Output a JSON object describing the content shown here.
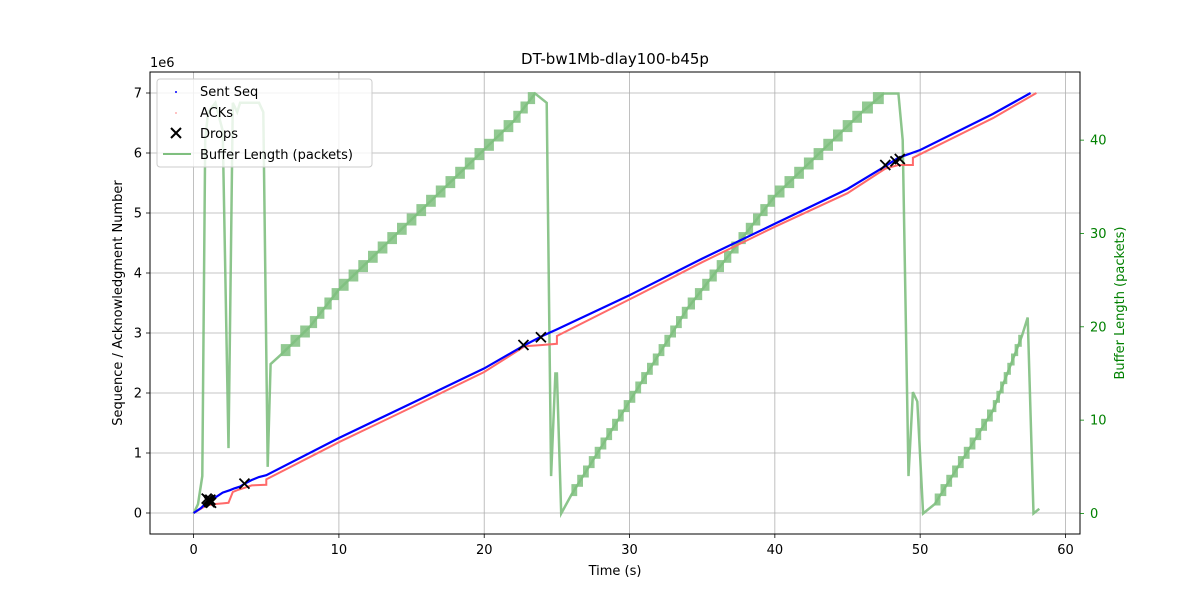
{
  "chart_data": {
    "type": "scatter",
    "title": "DT-bw1Mb-dlay100-b45p",
    "xlabel": "Time (s)",
    "ylabel": "Sequence / Acknowledgment Number",
    "y2label": "Buffer Length (packets)",
    "y_offset_label": "1e6",
    "xlim": [
      -3,
      61
    ],
    "ylim": [
      -0.35,
      7.35
    ],
    "y2lim": [
      -2.2,
      47.3
    ],
    "x_ticks": [
      0,
      10,
      20,
      30,
      40,
      50,
      60
    ],
    "y_ticks": [
      0,
      1,
      2,
      3,
      4,
      5,
      6,
      7
    ],
    "y2_ticks": [
      0,
      10,
      20,
      30,
      40
    ],
    "grid": true,
    "legend_position": "top-left",
    "colors": {
      "sent": "#0000ff",
      "acks": "#ff6a6a",
      "drops": "#000000",
      "buffer": "#7fbf7f",
      "right_axis": "#008000"
    },
    "series": [
      {
        "name": "Sent Seq",
        "kind": "line-points",
        "points": [
          [
            0,
            0
          ],
          [
            0.5,
            0.08
          ],
          [
            1,
            0.2
          ],
          [
            1.5,
            0.26
          ],
          [
            2,
            0.34
          ],
          [
            2.5,
            0.38
          ],
          [
            2.8,
            0.41
          ],
          [
            3.2,
            0.44
          ],
          [
            3.6,
            0.5
          ],
          [
            4,
            0.55
          ],
          [
            4.5,
            0.6
          ],
          [
            5,
            0.63
          ],
          [
            10,
            1.25
          ],
          [
            15,
            1.83
          ],
          [
            20,
            2.41
          ],
          [
            22.8,
            2.8
          ],
          [
            24,
            2.95
          ],
          [
            25,
            3.06
          ],
          [
            30,
            3.63
          ],
          [
            35,
            4.24
          ],
          [
            40,
            4.82
          ],
          [
            45,
            5.4
          ],
          [
            47.6,
            5.78
          ],
          [
            48.5,
            5.92
          ],
          [
            50,
            6.05
          ],
          [
            55,
            6.65
          ],
          [
            57.6,
            7.0
          ]
        ]
      },
      {
        "name": "ACKs",
        "kind": "line-points",
        "points": [
          [
            0,
            0
          ],
          [
            0.7,
            0.1
          ],
          [
            1,
            0.13
          ],
          [
            1.5,
            0.15
          ],
          [
            2,
            0.16
          ],
          [
            2.4,
            0.17
          ],
          [
            2.7,
            0.35
          ],
          [
            3,
            0.38
          ],
          [
            3.5,
            0.42
          ],
          [
            4,
            0.46
          ],
          [
            5,
            0.47
          ],
          [
            5,
            0.56
          ],
          [
            10,
            1.18
          ],
          [
            15,
            1.76
          ],
          [
            20,
            2.35
          ],
          [
            22.8,
            2.78
          ],
          [
            24,
            2.8
          ],
          [
            25,
            2.82
          ],
          [
            25,
            2.95
          ],
          [
            30,
            3.56
          ],
          [
            35,
            4.18
          ],
          [
            40,
            4.77
          ],
          [
            45,
            5.33
          ],
          [
            47.6,
            5.74
          ],
          [
            48.5,
            5.8
          ],
          [
            49.5,
            5.8
          ],
          [
            49.5,
            5.92
          ],
          [
            55,
            6.58
          ],
          [
            58,
            7.0
          ]
        ]
      },
      {
        "name": "Drops",
        "kind": "markers",
        "points": [
          [
            0.9,
            0.24
          ],
          [
            1.0,
            0.22
          ],
          [
            1.05,
            0.2
          ],
          [
            1.1,
            0.18
          ],
          [
            1.15,
            0.22
          ],
          [
            1.2,
            0.17
          ],
          [
            3.5,
            0.49
          ],
          [
            22.7,
            2.8
          ],
          [
            23.9,
            2.93
          ],
          [
            47.6,
            5.8
          ],
          [
            48.3,
            5.86
          ],
          [
            48.6,
            5.9
          ]
        ]
      },
      {
        "name": "Buffer Length (packets)",
        "kind": "step-band",
        "points": [
          [
            0,
            0
          ],
          [
            0.3,
            1
          ],
          [
            0.6,
            4
          ],
          [
            0.8,
            40
          ],
          [
            1.0,
            43
          ],
          [
            1.5,
            44
          ],
          [
            2.0,
            41
          ],
          [
            2.4,
            7
          ],
          [
            2.7,
            44
          ],
          [
            3.0,
            43
          ],
          [
            3.2,
            44
          ],
          [
            4.5,
            44
          ],
          [
            4.8,
            43
          ],
          [
            5.1,
            5
          ],
          [
            5.3,
            16
          ],
          [
            6,
            17
          ],
          [
            8,
            20
          ],
          [
            10,
            24
          ],
          [
            12,
            27
          ],
          [
            14,
            30
          ],
          [
            16,
            33
          ],
          [
            18,
            36
          ],
          [
            20,
            39
          ],
          [
            22,
            42
          ],
          [
            23.5,
            45
          ],
          [
            24.3,
            44
          ],
          [
            24.6,
            4
          ],
          [
            24.9,
            15
          ],
          [
            25,
            15
          ],
          [
            25.3,
            0
          ],
          [
            26,
            2
          ],
          [
            28,
            7
          ],
          [
            30,
            12
          ],
          [
            32,
            17
          ],
          [
            34,
            22
          ],
          [
            36,
            26
          ],
          [
            38,
            30
          ],
          [
            40,
            34
          ],
          [
            42,
            37
          ],
          [
            44,
            40
          ],
          [
            46,
            43
          ],
          [
            47.5,
            45
          ],
          [
            48.5,
            45
          ],
          [
            48.8,
            40
          ],
          [
            49.2,
            4
          ],
          [
            49.5,
            13
          ],
          [
            49.8,
            12
          ],
          [
            50.2,
            0
          ],
          [
            51,
            1
          ],
          [
            53,
            6
          ],
          [
            55,
            11
          ],
          [
            57,
            19
          ],
          [
            57.4,
            21
          ],
          [
            57.8,
            0
          ],
          [
            58.2,
            0.5
          ]
        ]
      }
    ]
  }
}
